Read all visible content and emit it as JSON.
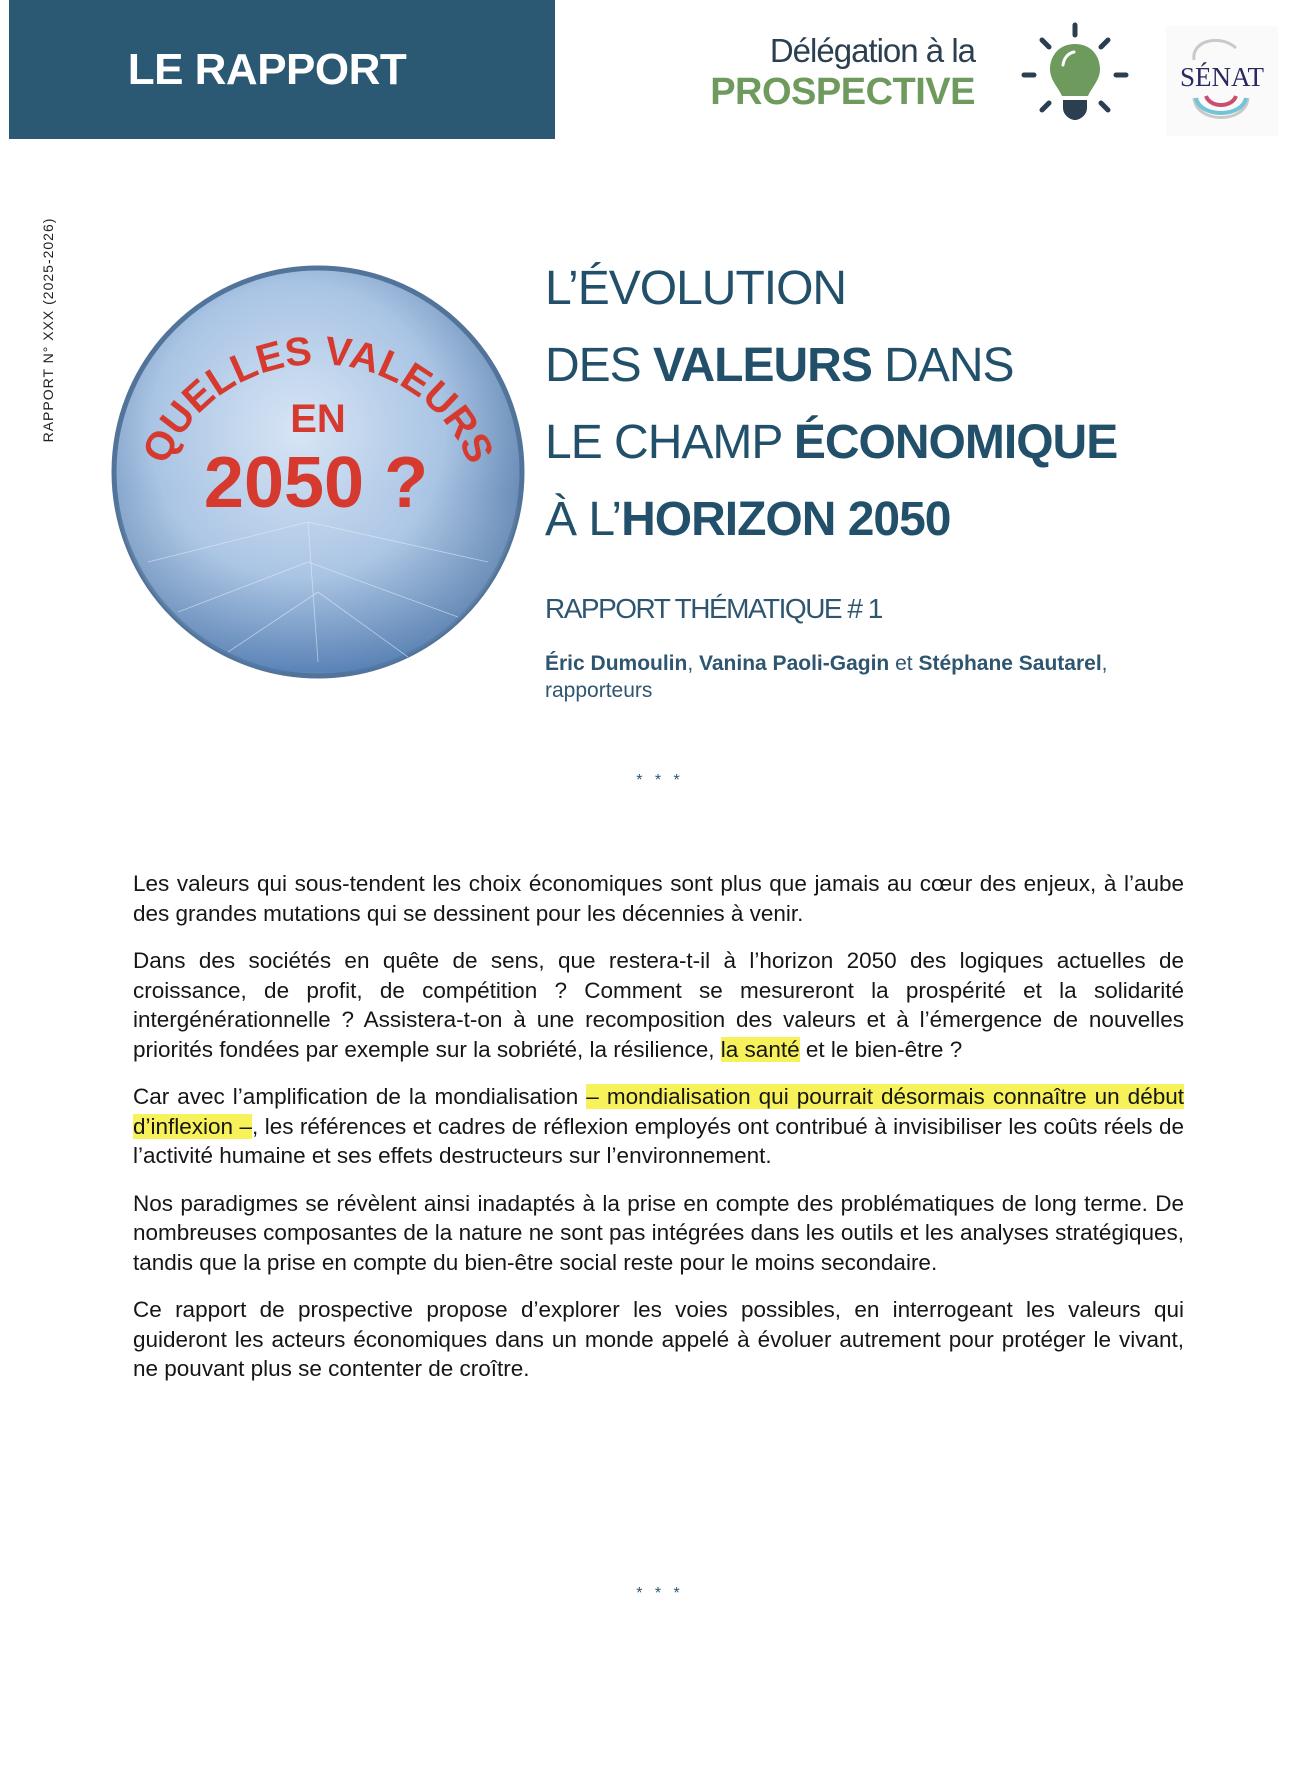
{
  "header": {
    "band_label": "LE RAPPORT",
    "delegation_line1": "Délégation à la",
    "delegation_line2": "PROSPECTIVE",
    "senat_logo_text": "SÉNAT",
    "colors": {
      "band": "#2b5872",
      "green": "#6e9a5e",
      "title": "#22506b"
    }
  },
  "side_label": "RAPPORT N° XXX (2025-2026)",
  "sphere": {
    "arc_text": "QUELLES VALEURS",
    "line2": "EN",
    "line3": "2050 ?"
  },
  "title": {
    "l1": "L’ÉVOLUTION",
    "l2a": "DES ",
    "l2b": "VALEURS",
    "l2c": " DANS",
    "l3a": "LE CHAMP ",
    "l3b": "ÉCONOMIQUE",
    "l4a": "À L’",
    "l4b": "HORIZON 2050"
  },
  "subtitle": "RAPPORT THÉMATIQUE # 1",
  "authors": {
    "a1": "Éric Dumoulin",
    "sep1": ", ",
    "a2": "Vanina Paoli-Gagin",
    "sep2": " et ",
    "a3": "Stéphane Sautarel",
    "sep3": ",",
    "role": "rapporteurs"
  },
  "separator": "* * *",
  "paragraphs": {
    "p1": "Les valeurs qui sous-tendent les choix économiques sont plus que jamais au cœur des enjeux, à l’aube des grandes mutations qui se dessinent pour les décennies à venir.",
    "p2a": "Dans des sociétés en quête de sens, que restera-t-il à l’horizon 2050 des logiques actuelles de croissance, de profit, de compétition ? Comment se mesureront la prospérité et la solidarité intergénérationnelle ? Assistera-t-on à une recomposition des valeurs et à l’émergence de nouvelles priorités fondées par exemple sur la sobriété, la résilience, ",
    "p2b": "la santé",
    "p2c": " et le bien-être ?",
    "p3a": "Car avec l’amplification de la mondialisation ",
    "p3b": "– mondialisation qui pourrait désormais connaître un début d’inflexion –",
    "p3c": ", les références et cadres de réflexion employés ont contribué à invisibiliser les coûts réels de l’activité humaine et ses effets destructeurs sur l’environnement.",
    "p4": "Nos paradigmes se révèlent ainsi inadaptés à la prise en compte des problématiques de long terme. De nombreuses composantes de la nature ne sont pas intégrées dans les outils et les analyses stratégiques, tandis que la prise en compte du bien-être social reste pour le moins secondaire.",
    "p5": "Ce rapport de prospective propose d’explorer les voies possibles, en interrogeant les valeurs qui guideront les acteurs économiques dans un monde appelé à évoluer autrement pour protéger le vivant, ne pouvant plus se contenter de croître."
  }
}
